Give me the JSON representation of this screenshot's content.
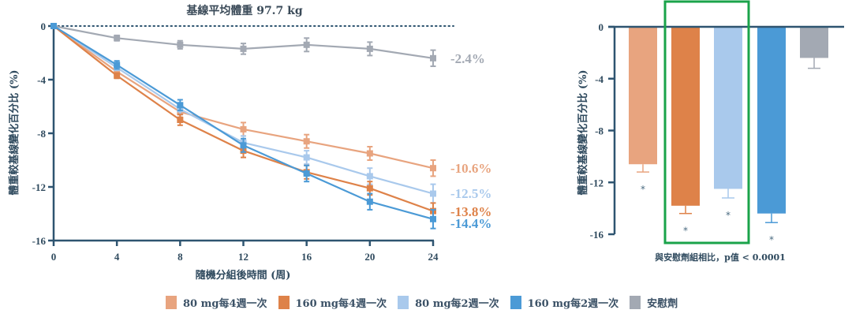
{
  "colors": {
    "axis": "#2e5470",
    "highlight_box": "#1aa34a",
    "series": [
      "#e8a47f",
      "#de8249",
      "#a9c9ec",
      "#4b9ad6",
      "#a3a9b3"
    ]
  },
  "legend": [
    {
      "label": "80 mg每4週一次"
    },
    {
      "label": "160 mg每4週一次"
    },
    {
      "label": "80 mg每2週一次"
    },
    {
      "label": "160 mg每2週一次"
    },
    {
      "label": "安慰劑"
    }
  ],
  "chart_data": [
    {
      "type": "line",
      "title": "基線平均體重 97.7 kg",
      "xlabel": "隨機分組後時間 (周)",
      "ylabel": "體重較基線變化百分比 (%)",
      "x": [
        0,
        4,
        8,
        12,
        16,
        20,
        24
      ],
      "xticks": [
        "0",
        "4",
        "8",
        "12",
        "16",
        "20",
        "24"
      ],
      "yticks": [
        "0",
        "-4",
        "-8",
        "-12",
        "-16"
      ],
      "xlim": [
        0,
        24
      ],
      "ylim": [
        -16,
        0
      ],
      "reference_line": {
        "y": 0,
        "style": "dotted"
      },
      "series": [
        {
          "name": "80 mg每4週一次",
          "values": [
            0,
            -3.4,
            -6.4,
            -7.7,
            -8.6,
            -9.5,
            -10.6
          ],
          "error": [
            0,
            0.2,
            0.4,
            0.5,
            0.5,
            0.5,
            0.6
          ],
          "end_label": "-10.6%"
        },
        {
          "name": "160 mg每4週一次",
          "values": [
            0,
            -3.7,
            -7.0,
            -9.3,
            -10.9,
            -12.1,
            -13.8
          ],
          "error": [
            0,
            0.2,
            0.4,
            0.5,
            0.5,
            0.5,
            0.6
          ],
          "end_label": "-13.8%"
        },
        {
          "name": "80 mg每2週一次",
          "values": [
            0,
            -3.1,
            -6.2,
            -8.7,
            -9.8,
            -11.2,
            -12.5
          ],
          "error": [
            0,
            0.2,
            0.4,
            0.5,
            0.5,
            0.6,
            0.7
          ],
          "end_label": "-12.5%"
        },
        {
          "name": "160 mg每2週一次",
          "values": [
            0,
            -2.9,
            -5.9,
            -8.9,
            -11.0,
            -13.1,
            -14.4
          ],
          "error": [
            0,
            0.3,
            0.4,
            0.5,
            0.6,
            0.6,
            0.7
          ],
          "end_label": "-14.4%"
        },
        {
          "name": "安慰劑",
          "values": [
            0,
            -0.9,
            -1.4,
            -1.7,
            -1.4,
            -1.7,
            -2.4
          ],
          "error": [
            0,
            0.2,
            0.3,
            0.4,
            0.5,
            0.5,
            0.6
          ],
          "end_label": "-2.4%"
        }
      ]
    },
    {
      "type": "bar",
      "ylabel": "體重較基線變化百分比 (%)",
      "note": "與安慰劑組相比，p值 < 0.0001",
      "categories": [
        "80 mg每4週一次",
        "160 mg每4週一次",
        "80 mg每2週一次",
        "160 mg每2週一次",
        "安慰劑"
      ],
      "values": [
        -10.6,
        -13.8,
        -12.5,
        -14.4,
        -2.4
      ],
      "error": [
        0.6,
        0.6,
        0.7,
        0.7,
        0.8
      ],
      "significance": [
        "*",
        "*",
        "*",
        "*",
        ""
      ],
      "yticks": [
        "0",
        "-4",
        "-8",
        "-12",
        "-16"
      ],
      "ylim": [
        -16,
        0
      ],
      "highlighted_categories": [
        "160 mg每4週一次",
        "80 mg每2週一次"
      ]
    }
  ]
}
